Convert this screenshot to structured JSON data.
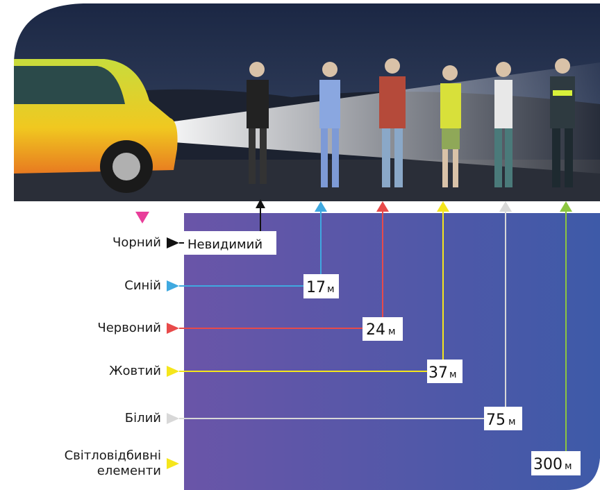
{
  "rows": [
    {
      "label": "Чорний",
      "value": "Невидимий"
    },
    {
      "label": "Синій",
      "value": "17",
      "unit": "м"
    },
    {
      "label": "Червоний",
      "value": "24",
      "unit": "м"
    },
    {
      "label": "Жовтий",
      "value": "37",
      "unit": "м"
    },
    {
      "label": "Білий",
      "value": "75",
      "unit": "м"
    },
    {
      "label": "Світловідбивні елементи",
      "value": "300",
      "unit": "м"
    }
  ]
}
